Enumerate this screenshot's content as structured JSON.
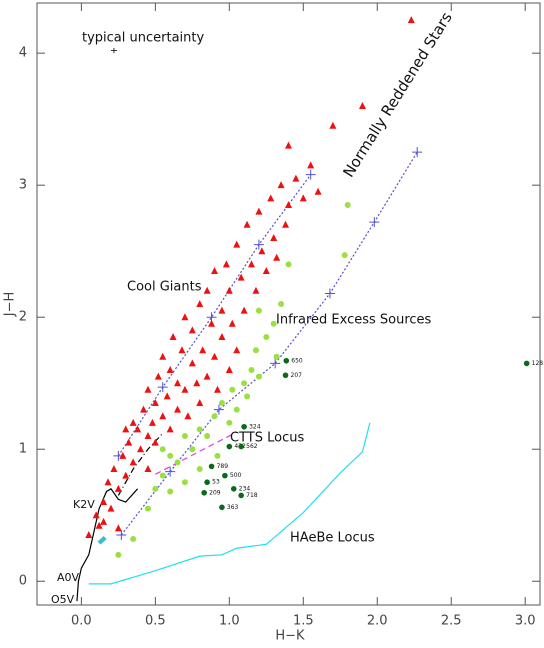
{
  "chart_data": {
    "type": "scatter",
    "xlabel": "H−K",
    "ylabel": "J−H",
    "xlim": [
      -0.3,
      3.1
    ],
    "ylim": [
      -0.18,
      4.38
    ],
    "xticks": [
      {
        "value": 0,
        "label": "0.0"
      },
      {
        "value": 0.5,
        "label": "0.5"
      },
      {
        "value": 1,
        "label": "1.0"
      },
      {
        "value": 1.5,
        "label": "1.5"
      },
      {
        "value": 2,
        "label": "2.0"
      },
      {
        "value": 2.5,
        "label": "2.5"
      },
      {
        "value": 3,
        "label": "3.0"
      }
    ],
    "yticks": [
      0,
      1,
      2,
      3,
      4
    ],
    "annotations": [
      "typical uncertainty",
      "Normally Reddened Stars",
      "Cool Giants",
      "Infrared Excess Sources",
      "CTTS Locus",
      "HAeBe Locus",
      "K2V",
      "A0V",
      "O5V"
    ],
    "uncertainty": {
      "x": 0.22,
      "y": 4.02,
      "xerr": 0.02,
      "yerr": 0.02
    },
    "lines": [
      {
        "x": [
          0.25,
          0.55,
          0.88,
          1.2,
          1.55
        ],
        "y": [
          0.95,
          1.47,
          2.0,
          2.55,
          3.08
        ],
        "color": "#5050d0",
        "dash": "2,2",
        "marker": "+"
      },
      {
        "x": [
          0.27,
          0.6,
          0.93,
          1.31,
          1.68,
          1.98,
          2.27
        ],
        "y": [
          0.35,
          0.83,
          1.3,
          1.65,
          2.18,
          2.72,
          3.25
        ],
        "color": "#5050d0",
        "dash": "2,2",
        "marker": "+"
      },
      {
        "x": [
          0.5,
          1.05
        ],
        "y": [
          0.81,
          1.13
        ],
        "color": "#e040e0",
        "dash": "6,4"
      },
      {
        "x": [
          0.05,
          0.2,
          0.5,
          0.8,
          0.95,
          1.05,
          1.25,
          1.5,
          1.75,
          1.9,
          1.95
        ],
        "y": [
          -0.02,
          -0.02,
          0.08,
          0.19,
          0.2,
          0.25,
          0.28,
          0.52,
          0.82,
          0.98,
          1.2
        ],
        "color": "#20e0f0"
      },
      {
        "x": [
          -0.03,
          -0.02,
          0.0,
          0.05,
          0.08,
          0.12,
          0.17,
          0.2,
          0.25,
          0.3,
          0.38
        ],
        "y": [
          -0.15,
          0.0,
          0.1,
          0.2,
          0.35,
          0.55,
          0.68,
          0.7,
          0.62,
          0.6,
          0.7
        ],
        "color": "#000000"
      },
      {
        "x": [
          0.25,
          0.35,
          0.45,
          0.55
        ],
        "y": [
          0.65,
          0.85,
          1.0,
          1.12
        ],
        "color": "#000000",
        "dash": "6,3,1,3"
      }
    ],
    "series": [
      {
        "color": "#ee1111",
        "marker": "triangle",
        "x": [
          0.05,
          0.1,
          0.12,
          0.15,
          0.18,
          0.2,
          0.22,
          0.25,
          0.28,
          0.3,
          0.32,
          0.35,
          0.38,
          0.4,
          0.42,
          0.45,
          0.45,
          0.48,
          0.5,
          0.5,
          0.52,
          0.55,
          0.55,
          0.58,
          0.6,
          0.6,
          0.62,
          0.65,
          0.65,
          0.68,
          0.7,
          0.7,
          0.72,
          0.75,
          0.75,
          0.78,
          0.8,
          0.8,
          0.82,
          0.85,
          0.85,
          0.88,
          0.9,
          0.9,
          0.92,
          0.95,
          0.95,
          0.98,
          1.0,
          1.0,
          1.02,
          1.05,
          1.05,
          1.08,
          1.1,
          1.12,
          1.15,
          1.18,
          1.2,
          1.22,
          1.25,
          1.28,
          1.3,
          1.32,
          1.35,
          1.38,
          1.4,
          1.45,
          1.5,
          1.55,
          1.6,
          1.4,
          1.7,
          1.9,
          2.23,
          0.3,
          0.35,
          0.15,
          0.25,
          0.45
        ],
        "y": [
          0.35,
          0.5,
          0.42,
          0.6,
          0.75,
          0.55,
          0.85,
          0.7,
          0.95,
          0.8,
          1.05,
          0.9,
          1.15,
          1.0,
          1.3,
          1.1,
          1.45,
          1.2,
          1.35,
          1.05,
          1.55,
          1.25,
          1.7,
          1.4,
          1.15,
          1.6,
          1.85,
          1.3,
          1.5,
          1.75,
          1.45,
          2.0,
          1.25,
          1.65,
          1.9,
          1.5,
          2.1,
          1.35,
          1.75,
          1.55,
          2.2,
          1.95,
          1.7,
          2.35,
          1.45,
          2.05,
          1.85,
          2.4,
          1.6,
          2.2,
          1.95,
          2.55,
          1.75,
          2.3,
          2.05,
          2.7,
          2.4,
          2.2,
          2.8,
          2.5,
          2.35,
          2.9,
          2.6,
          2.45,
          3.0,
          2.7,
          2.85,
          3.05,
          2.9,
          3.15,
          2.95,
          3.3,
          3.45,
          3.6,
          4.25,
          1.15,
          1.2,
          0.45,
          0.4,
          0.85
        ]
      },
      {
        "color": "#99e040",
        "marker": "circle",
        "x": [
          0.35,
          0.5,
          0.55,
          0.6,
          0.65,
          0.7,
          0.75,
          0.8,
          0.85,
          0.9,
          0.92,
          0.95,
          1.0,
          1.02,
          1.05,
          1.1,
          1.12,
          1.15,
          1.18,
          1.2,
          1.25,
          1.3,
          1.32,
          1.35,
          1.4,
          1.2,
          1.78,
          1.8,
          0.55,
          0.6,
          0.7,
          0.8,
          0.45,
          0.25
        ],
        "y": [
          0.32,
          0.7,
          0.8,
          0.68,
          0.9,
          0.75,
          1.0,
          0.85,
          1.1,
          1.25,
          0.95,
          1.35,
          1.2,
          1.45,
          1.3,
          1.5,
          1.4,
          1.6,
          1.75,
          1.55,
          1.85,
          1.95,
          1.7,
          2.1,
          2.4,
          2.05,
          2.47,
          2.85,
          1.0,
          0.95,
          1.1,
          1.15,
          0.55,
          0.2
        ]
      },
      {
        "color": "#30c0d0",
        "marker": "diamond",
        "x": [
          0.13,
          0.15
        ],
        "y": [
          0.3,
          0.32
        ]
      },
      {
        "color": "#0a6a1a",
        "marker": "circle",
        "x": [
          1.385,
          1.38,
          3.01,
          1.1,
          1.0,
          1.08,
          0.88,
          0.97,
          0.85,
          1.03,
          0.83,
          1.08,
          0.95
        ],
        "y": [
          1.67,
          1.56,
          1.65,
          1.17,
          1.02,
          1.02,
          0.87,
          0.8,
          0.75,
          0.7,
          0.67,
          0.65,
          0.56
        ],
        "labels": [
          "650",
          "207",
          "128",
          "324",
          "472",
          "562",
          "789",
          "500",
          "53",
          "234",
          "209",
          "718",
          "363"
        ]
      }
    ]
  }
}
